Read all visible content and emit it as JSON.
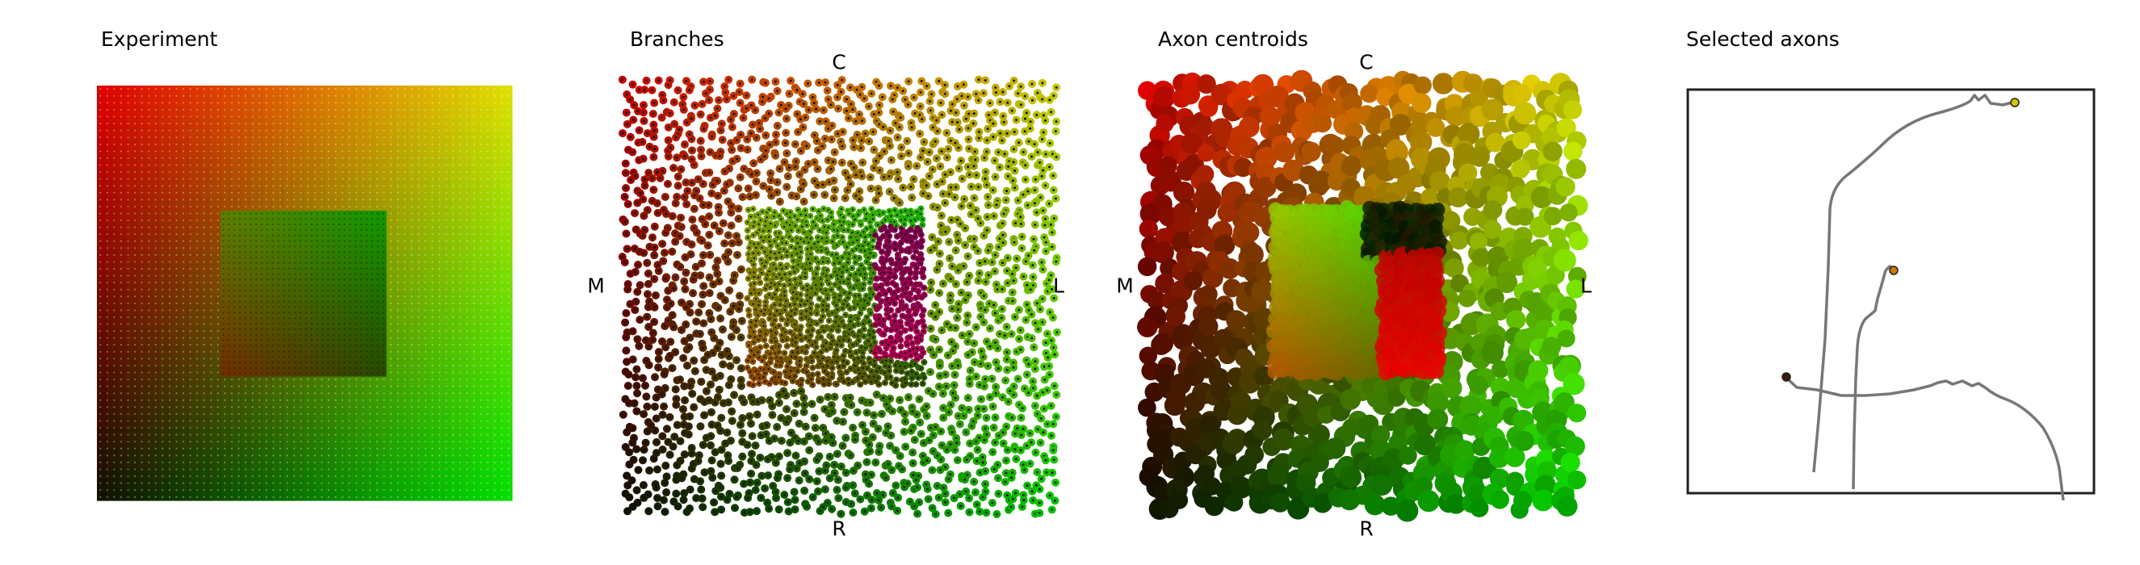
{
  "figure": {
    "panels": [
      {
        "id": "experiment",
        "title": "Experiment"
      },
      {
        "id": "branches",
        "title": "Branches",
        "axis_labels": {
          "top": "C",
          "bottom": "R",
          "left": "M",
          "right": "L"
        }
      },
      {
        "id": "centroids",
        "title": "Axon centroids",
        "axis_labels": {
          "top": "C",
          "bottom": "R",
          "left": "M",
          "right": "L"
        }
      },
      {
        "id": "selected",
        "title": "Selected axons"
      }
    ],
    "colors": {
      "top_left": "#e00000",
      "top_right": "#e0e000",
      "bottom_left": "#101000",
      "bottom_right": "#00e000",
      "axon_trace": "#777777",
      "frame": "#222222"
    }
  }
}
